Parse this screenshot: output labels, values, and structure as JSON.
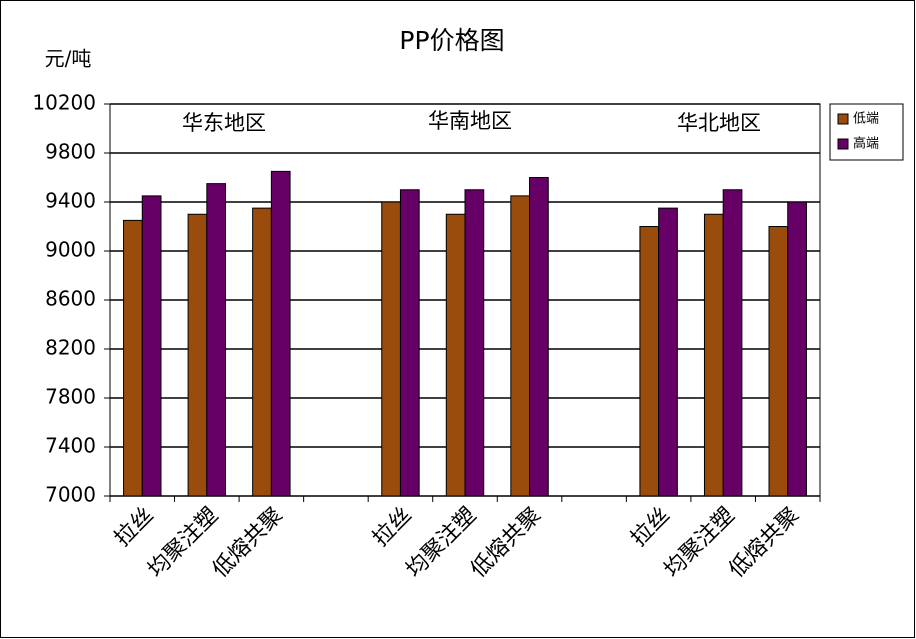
{
  "chart_data": {
    "type": "bar",
    "title": "PP价格图",
    "y_label": "元/吨",
    "annotations": [
      "华东地区",
      "华南地区",
      "华北地区"
    ],
    "categories": [
      "拉丝",
      "均聚注塑",
      "低熔共聚",
      null,
      "拉丝",
      "均聚注塑",
      "低熔共聚",
      null,
      "拉丝",
      "均聚注塑",
      "低熔共聚"
    ],
    "series": [
      {
        "name": "低端",
        "color": "#9a4c0c",
        "values": [
          9250,
          9300,
          9350,
          null,
          9400,
          9300,
          9450,
          null,
          9200,
          9300,
          9200
        ]
      },
      {
        "name": "高端",
        "color": "#660066",
        "values": [
          9450,
          9550,
          9650,
          null,
          9500,
          9500,
          9600,
          null,
          9350,
          9500,
          9400
        ]
      }
    ],
    "ylim": [
      7000,
      10200
    ],
    "yticks": [
      7000,
      7400,
      7800,
      8200,
      8600,
      9000,
      9400,
      9800,
      10200
    ],
    "grid": true,
    "legend": "right"
  }
}
